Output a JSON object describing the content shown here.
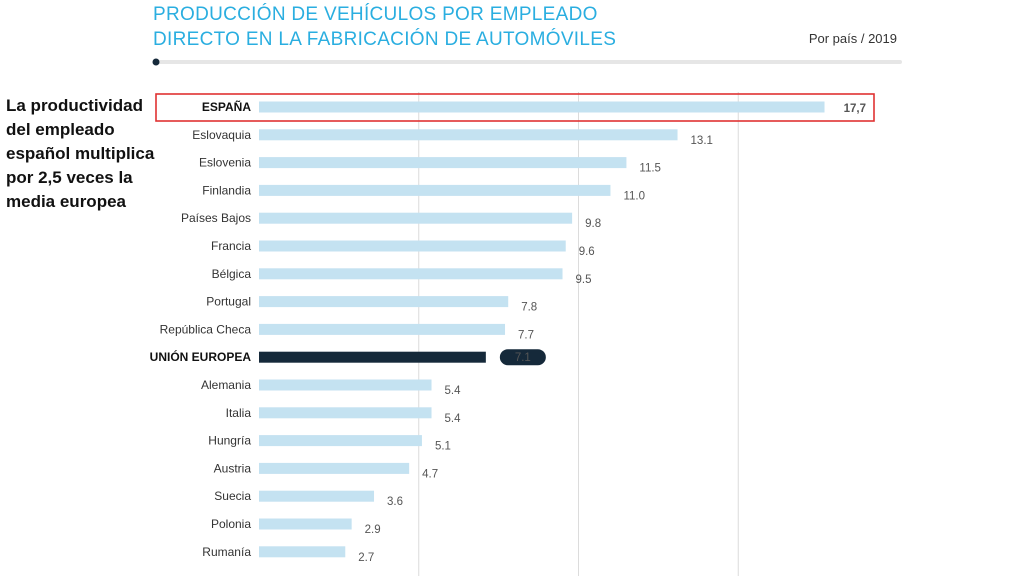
{
  "header": {
    "title_line1": "PRODUCCIÓN DE VEHÍCULOS POR EMPLEADO",
    "title_line2": "DIRECTO EN LA FABRICACIÓN DE AUTOMÓVILES",
    "subtitle": "Por país / 2019"
  },
  "callout": {
    "text": "La productividad del empleado español multiplica por 2,5 veces la media europea"
  },
  "colors": {
    "title": "#2aaee0",
    "bar": "#c4e2f1",
    "eu_bar": "#15293a",
    "highlight_box": "#e03232",
    "progress_track": "#e6e6e6",
    "progress_dot": "#15293a"
  },
  "chart_data": {
    "type": "bar",
    "orientation": "horizontal",
    "categories": [
      "ESPAÑA",
      "Eslovaquia",
      "Eslovenia",
      "Finlandia",
      "Países Bajos",
      "Francia",
      "Bélgica",
      "Portugal",
      "República Checa",
      "UNIÓN EUROPEA",
      "Alemania",
      "Italia",
      "Hungría",
      "Austria",
      "Suecia",
      "Polonia",
      "Rumanía"
    ],
    "values": [
      17.7,
      13.1,
      11.5,
      11.0,
      9.8,
      9.6,
      9.5,
      7.8,
      7.7,
      7.1,
      5.4,
      5.4,
      5.1,
      4.7,
      3.6,
      2.9,
      2.7
    ],
    "value_labels": [
      "17,7",
      "13.1",
      "11.5",
      "11.0",
      "9.8",
      "9.6",
      "9.5",
      "7.8",
      "7.7",
      "7.1",
      "5.4",
      "5.4",
      "5.1",
      "4.7",
      "3.6",
      "2.9",
      "2.7"
    ],
    "highlight": [
      "ESPAÑA",
      "UNIÓN EUROPEA"
    ],
    "xlim": [
      0,
      19
    ],
    "grid": true,
    "legend": "none"
  }
}
